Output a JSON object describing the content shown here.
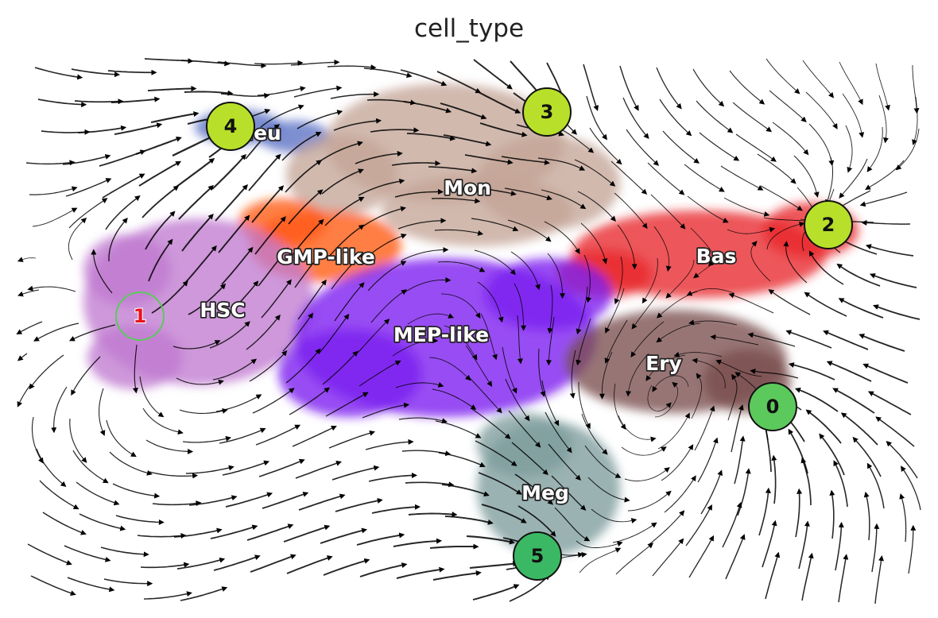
{
  "chart_data": {
    "type": "scatter",
    "title": "cell_type",
    "xlabel": "",
    "ylabel": "",
    "grid": false,
    "legend": "on data",
    "clusters": [
      {
        "name": "Neu",
        "color": "#5a6fc4"
      },
      {
        "name": "Mon",
        "color": "#c4a597"
      },
      {
        "name": "GMP-like",
        "color": "#ff5a14"
      },
      {
        "name": "Bas",
        "color": "#e8282a"
      },
      {
        "name": "HSC",
        "color": "#c07ad0"
      },
      {
        "name": "MEP-like",
        "color": "#7a1cf0"
      },
      {
        "name": "Ery",
        "color": "#7a4e4e"
      },
      {
        "name": "Meg",
        "color": "#7e9c9c"
      }
    ],
    "nodes": [
      {
        "label": "0",
        "color": "#5cc95c",
        "text_color": "#111111",
        "style": "filled"
      },
      {
        "label": "1",
        "color": "#5cc95c",
        "text_color": "#e8141e",
        "style": "ring"
      },
      {
        "label": "2",
        "color": "#b8e02a",
        "text_color": "#111111",
        "style": "filled"
      },
      {
        "label": "3",
        "color": "#b8e02a",
        "text_color": "#111111",
        "style": "filled"
      },
      {
        "label": "4",
        "color": "#b8e02a",
        "text_color": "#111111",
        "style": "filled"
      },
      {
        "label": "5",
        "color": "#3bb863",
        "text_color": "#111111",
        "style": "filled"
      }
    ],
    "stream_color": "#000000"
  }
}
